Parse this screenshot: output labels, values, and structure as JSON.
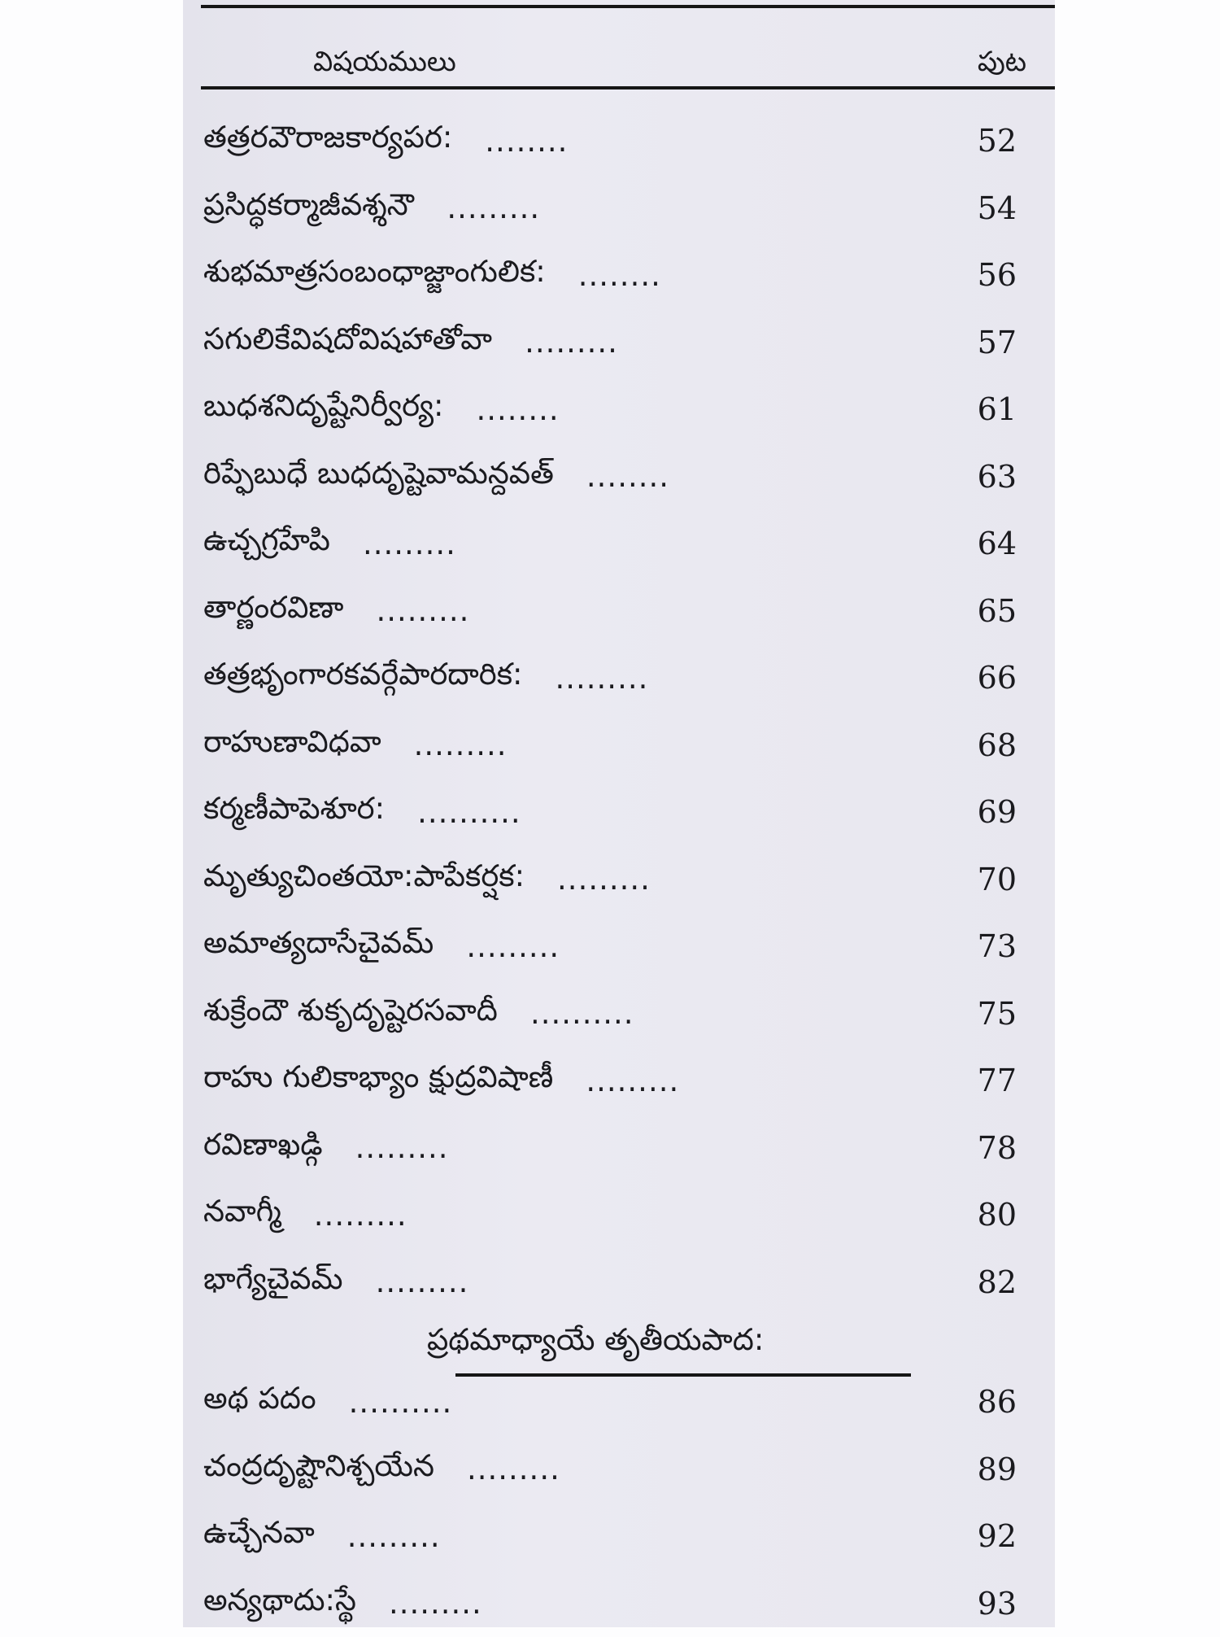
{
  "header": {
    "subject_label": "విషయములు",
    "page_label": "పుట"
  },
  "entries": [
    {
      "title": "తత్రరవౌరాజకార్యపర:",
      "dots": "........",
      "page": "52"
    },
    {
      "title": "ప్రసిద్ధకర్మాజీవశ్శనౌ",
      "dots": ".........",
      "page": "54"
    },
    {
      "title": "శుభమాత్రసంబంధాజ్జాంగులిక:",
      "dots": "........",
      "page": "56"
    },
    {
      "title": "సగులికేవిషదోవిషహాతోవా",
      "dots": ".........",
      "page": "57"
    },
    {
      "title": "బుధశనిదృష్టేనిర్వీర్య:",
      "dots": "........",
      "page": "61"
    },
    {
      "title": "రిప్ఫేబుధే బుధదృష్టెవామన్దవత్",
      "dots": "........",
      "page": "63"
    },
    {
      "title": "ఉచ్చగ్రహేపి",
      "dots": ".........",
      "page": "64"
    },
    {
      "title": "తార్ణంరవిణా",
      "dots": ".........",
      "page": "65"
    },
    {
      "title": "తత్రభృంగారకవర్గేపారదారిక:",
      "dots": ".........",
      "page": "66"
    },
    {
      "title": "రాహుణావిధవా",
      "dots": ".........",
      "page": "68"
    },
    {
      "title": "కర్మణీపాపెశూర:",
      "dots": "..........",
      "page": "69"
    },
    {
      "title": "మృత్యుచింతయో:పాపేకర్షక:",
      "dots": ".........",
      "page": "70"
    },
    {
      "title": "అమాత్యదాసేచైవమ్",
      "dots": ".........",
      "page": "73"
    },
    {
      "title": "శుక్రేందౌ శుకృదృష్టెరసవాదీ",
      "dots": "..........",
      "page": "75"
    },
    {
      "title": "రాహు గులికాభ్యాం క్షుద్రవిషాణీ",
      "dots": ".........",
      "page": "77"
    },
    {
      "title": "రవిణాఖడ్గి",
      "dots": ".........",
      "page": "78"
    },
    {
      "title": "నవాగ్మీ",
      "dots": ".........",
      "page": "80"
    },
    {
      "title": "భాగ్యేచైవమ్",
      "dots": ".........",
      "page": "82"
    }
  ],
  "section_title": "ప్రథమాధ్యాయే తృతీయపాద:",
  "entries2": [
    {
      "title": "అథ పదం",
      "dots": "..........",
      "page": "86"
    },
    {
      "title": "చంద్రదృష్టౌనిశ్చయేన",
      "dots": ".........",
      "page": "89"
    },
    {
      "title": "ఉచ్చేనవా",
      "dots": ".........",
      "page": "92"
    },
    {
      "title": "అన్యథాదు:స్థే",
      "dots": ".........",
      "page": "93"
    }
  ]
}
